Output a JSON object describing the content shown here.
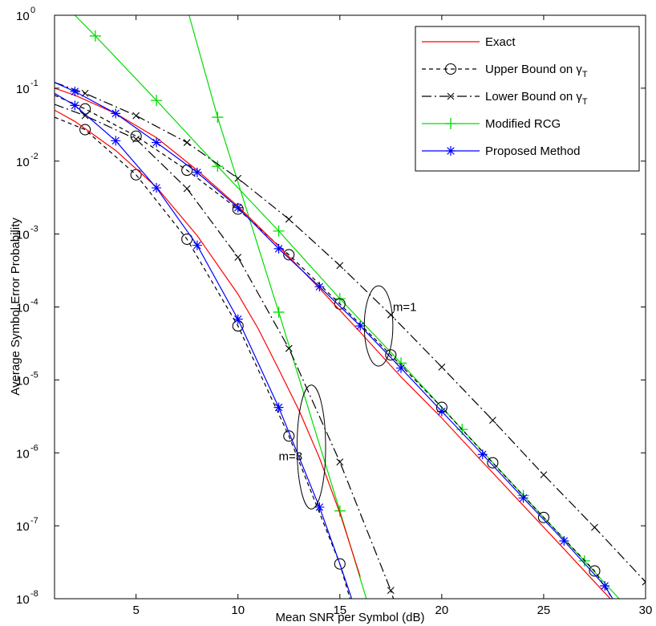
{
  "chart_data": {
    "type": "line",
    "title": "",
    "xlabel": "Mean SNR per Symbol (dB)",
    "ylabel": "Average Symbol Error Probability",
    "xlim": [
      1,
      30
    ],
    "ylim": [
      1e-08,
      1
    ],
    "yscale": "log",
    "grid": false,
    "legend_position": "top-right",
    "xticks": [
      5,
      10,
      15,
      20,
      25,
      30
    ],
    "xtick_labels": [
      "5",
      "10",
      "15",
      "20",
      "25",
      "30"
    ],
    "yticks": [
      1e-08,
      1e-07,
      1e-06,
      1e-05,
      0.0001,
      0.001,
      0.01,
      0.1,
      1
    ],
    "ytick_labels": [
      {
        "base": "10",
        "exp": "-8"
      },
      {
        "base": "10",
        "exp": "-7"
      },
      {
        "base": "10",
        "exp": "-6"
      },
      {
        "base": "10",
        "exp": "-5"
      },
      {
        "base": "10",
        "exp": "-4"
      },
      {
        "base": "10",
        "exp": "-3"
      },
      {
        "base": "10",
        "exp": "-2"
      },
      {
        "base": "10",
        "exp": "-1"
      },
      {
        "base": "10",
        "exp": "0"
      }
    ],
    "legend": [
      {
        "label": "Exact",
        "color": "#ff0000",
        "dash": "",
        "marker": "none"
      },
      {
        "label": "Upper Bound on γ",
        "sub": "T",
        "color": "#000000",
        "dash": "5,4",
        "marker": "circle"
      },
      {
        "label": "Lower Bound on γ",
        "sub": "T",
        "color": "#000000",
        "dash": "12,4,2,4",
        "marker": "x"
      },
      {
        "label": "Modified RCG",
        "color": "#00dd00",
        "dash": "",
        "marker": "plus"
      },
      {
        "label": "Proposed Method",
        "color": "#0000ff",
        "dash": "",
        "marker": "star"
      }
    ],
    "annotations": [
      {
        "text": "m=1",
        "at": [
          17.6,
          0.0001
        ],
        "ellipse_center": [
          16.9,
          5.5e-05
        ],
        "ellipse_rx_db": 0.7,
        "ellipse_ry_decades": 0.55
      },
      {
        "text": "m=3",
        "at": [
          12.0,
          9e-07
        ],
        "ellipse_center": [
          13.6,
          1.2e-06
        ],
        "ellipse_rx_db": 0.7,
        "ellipse_ry_decades": 0.85
      }
    ],
    "series": [
      {
        "legend": 0,
        "m": 1,
        "x": [
          1,
          2,
          4,
          6,
          8,
          10,
          12,
          14,
          16,
          18,
          20,
          22,
          24,
          26,
          28,
          28.8
        ],
        "y": [
          0.1,
          0.08,
          0.045,
          0.021,
          0.0075,
          0.0024,
          0.00068,
          0.00018,
          4.5e-05,
          1.1e-05,
          3e-06,
          7.5e-07,
          1.9e-07,
          4.8e-08,
          1.2e-08,
          7e-09
        ]
      },
      {
        "legend": 0,
        "m": 3,
        "x": [
          1,
          2,
          4,
          6,
          8,
          10,
          11,
          12,
          13,
          14,
          15,
          16
        ],
        "y": [
          0.05,
          0.035,
          0.014,
          0.0044,
          0.00095,
          0.00015,
          5e-05,
          1.4e-05,
          3.8e-06,
          8.5e-07,
          1.5e-07,
          2e-08
        ]
      },
      {
        "legend": 1,
        "m": 1,
        "x": [
          1,
          2.5,
          5,
          7.5,
          10,
          12.5,
          15,
          17.5,
          20,
          22.5,
          25,
          27.5,
          28.6
        ],
        "y": [
          0.08,
          0.052,
          0.022,
          0.0075,
          0.0022,
          0.00052,
          0.00011,
          2.2e-05,
          4.2e-06,
          7.3e-07,
          1.3e-07,
          2.4e-08,
          8e-09
        ],
        "markers_x": [
          2.5,
          5,
          7.5,
          10,
          12.5,
          15,
          17.5,
          20,
          22.5,
          25,
          27.5
        ]
      },
      {
        "legend": 1,
        "m": 3,
        "x": [
          1,
          2.5,
          5,
          7.5,
          10,
          12.5,
          15,
          15.6
        ],
        "y": [
          0.04,
          0.027,
          0.0065,
          0.00085,
          5.5e-05,
          1.7e-06,
          3e-08,
          8e-09
        ],
        "markers_x": [
          2.5,
          5,
          7.5,
          10,
          12.5,
          15
        ]
      },
      {
        "legend": 2,
        "m": 1,
        "x": [
          1,
          2.5,
          5,
          7.5,
          10,
          12.5,
          15,
          17.5,
          20,
          22.5,
          25,
          27.5,
          30
        ],
        "y": [
          0.12,
          0.085,
          0.042,
          0.018,
          0.0058,
          0.0016,
          0.00037,
          7.8e-05,
          1.5e-05,
          2.8e-06,
          5e-07,
          9.5e-08,
          1.7e-08
        ],
        "markers_x": [
          2.5,
          5,
          7.5,
          10,
          12.5,
          15,
          17.5,
          20,
          22.5,
          25,
          27.5,
          30
        ]
      },
      {
        "legend": 2,
        "m": 3,
        "x": [
          1,
          2.5,
          5,
          7.5,
          10,
          12.5,
          15,
          17.5,
          17.8
        ],
        "y": [
          0.06,
          0.042,
          0.02,
          0.0042,
          0.00048,
          2.7e-05,
          7.5e-07,
          1.3e-08,
          7e-09
        ],
        "markers_x": [
          2.5,
          5,
          7.5,
          10,
          12.5,
          15,
          17.5
        ]
      },
      {
        "legend": 3,
        "m": 1,
        "x": [
          2,
          3,
          6,
          9,
          12,
          15,
          18,
          21,
          24,
          27,
          28.7
        ],
        "y": [
          1.0,
          0.52,
          0.068,
          0.0085,
          0.0011,
          0.00013,
          1.7e-05,
          2.1e-06,
          2.6e-07,
          3.3e-08,
          1e-08
        ],
        "markers_x": [
          3,
          6,
          9,
          12,
          15,
          18,
          21,
          24,
          27
        ]
      },
      {
        "legend": 3,
        "m": 3,
        "x": [
          7.6,
          9,
          12,
          15,
          16.3
        ],
        "y": [
          1.0,
          0.04,
          8.5e-05,
          1.6e-07,
          1e-08
        ],
        "markers_x": [
          9,
          12,
          15
        ]
      },
      {
        "legend": 4,
        "m": 1,
        "x": [
          1,
          2,
          4,
          6,
          8,
          10,
          12,
          14,
          16,
          18,
          20,
          22,
          24,
          26,
          28,
          28.6
        ],
        "y": [
          0.12,
          0.09,
          0.045,
          0.018,
          0.007,
          0.0023,
          0.00063,
          0.00019,
          5.5e-05,
          1.45e-05,
          3.7e-06,
          9.5e-07,
          2.4e-07,
          6.2e-08,
          1.5e-08,
          8e-09
        ],
        "markers_x": [
          2,
          4,
          6,
          8,
          10,
          12,
          14,
          16,
          18,
          20,
          22,
          24,
          26,
          28
        ]
      },
      {
        "legend": 4,
        "m": 3,
        "x": [
          1,
          2,
          4,
          6,
          8,
          10,
          12,
          14,
          15,
          15.7
        ],
        "y": [
          0.085,
          0.058,
          0.019,
          0.0043,
          0.0007,
          6.8e-05,
          4.2e-06,
          1.8e-07,
          3e-08,
          8e-09
        ],
        "markers_x": [
          2,
          4,
          6,
          8,
          10,
          12,
          14
        ]
      }
    ]
  }
}
